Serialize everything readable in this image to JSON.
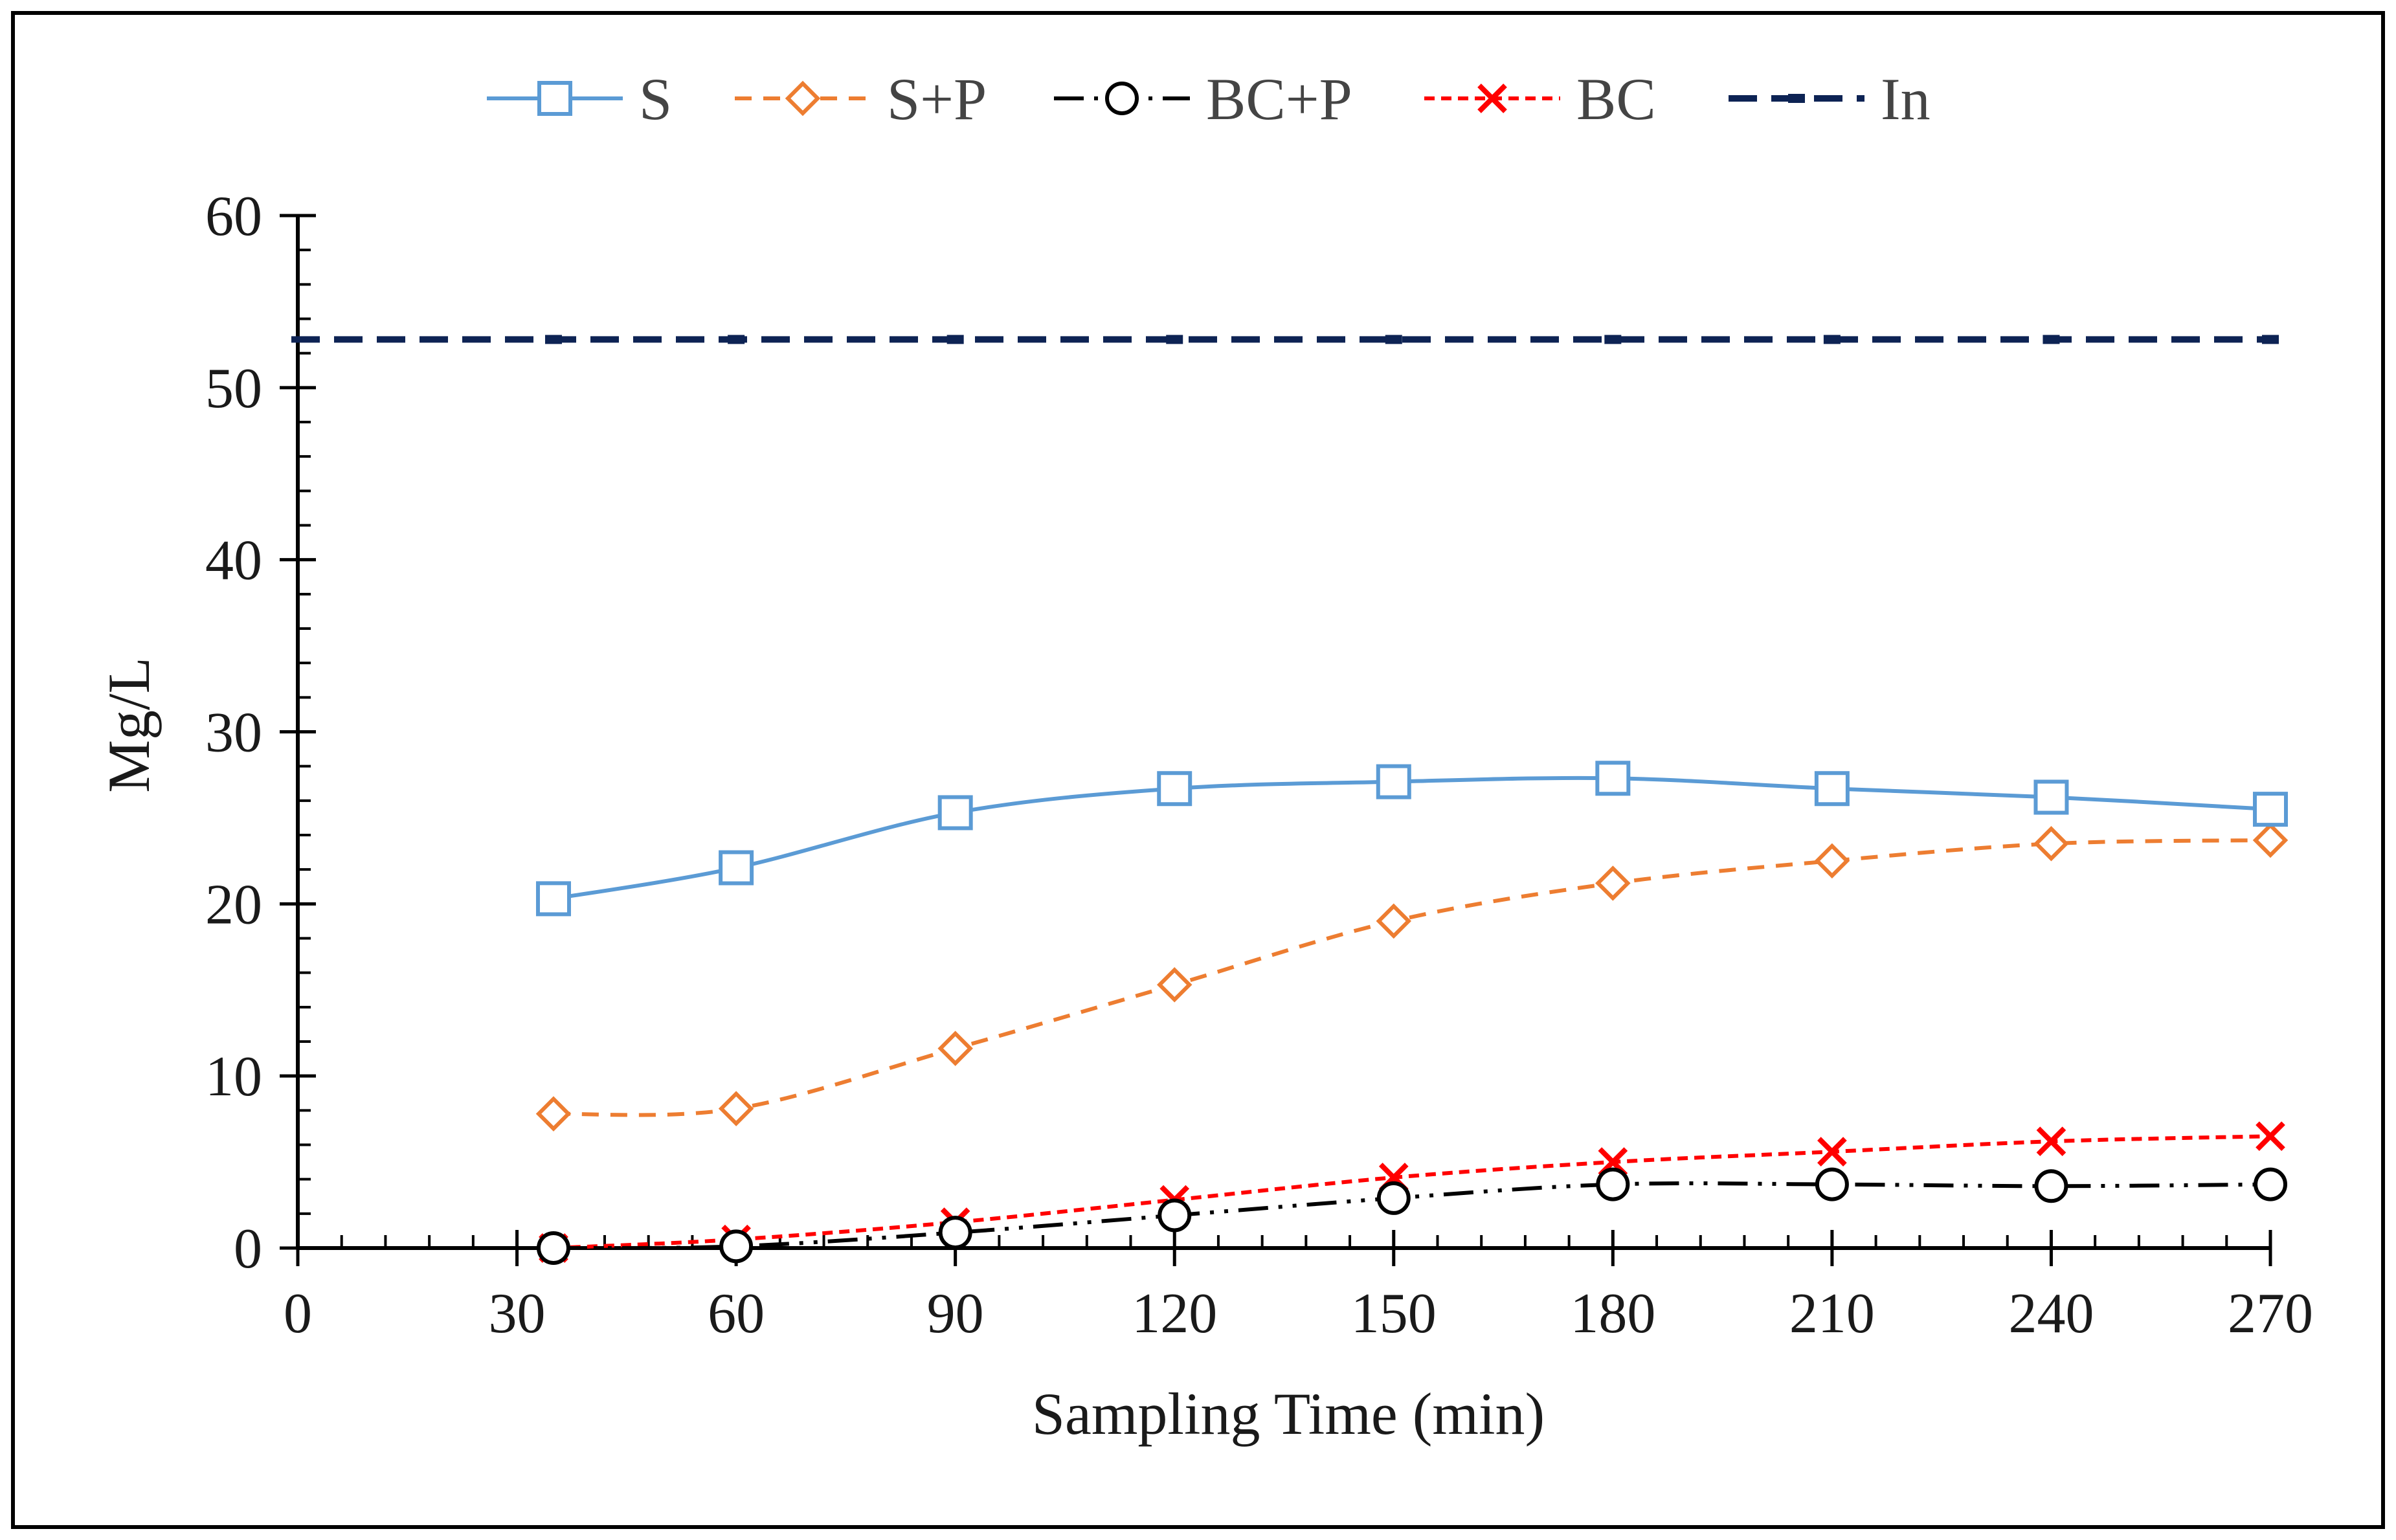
{
  "chart_data": {
    "type": "line",
    "title": "",
    "xlabel": "Sampling Time (min)",
    "ylabel": "Mg/L",
    "xlim": [
      0,
      270
    ],
    "ylim": [
      0,
      60
    ],
    "x_ticks": [
      0,
      30,
      60,
      90,
      120,
      150,
      180,
      210,
      240,
      270
    ],
    "y_ticks": [
      0,
      10,
      20,
      30,
      40,
      50,
      60
    ],
    "x_tick_labels": [
      "0",
      "30",
      "60",
      "90",
      "120",
      "150",
      "180",
      "210",
      "240",
      "270"
    ],
    "y_tick_labels": [
      "0",
      "10",
      "20",
      "30",
      "40",
      "50",
      "60"
    ],
    "x": [
      35,
      60,
      90,
      120,
      150,
      180,
      210,
      240,
      270
    ],
    "legend_position": "top",
    "grid": false,
    "series": [
      {
        "name": "S",
        "color": "#5b9bd5",
        "marker": "square",
        "dash": "solid",
        "values": [
          20.3,
          22.1,
          25.3,
          26.7,
          27.1,
          27.3,
          26.7,
          26.2,
          25.5
        ]
      },
      {
        "name": "S+P",
        "color": "#ed7d31",
        "marker": "diamond",
        "dash": "dashed",
        "values": [
          7.8,
          8.1,
          11.6,
          15.3,
          19.0,
          21.2,
          22.5,
          23.5,
          23.7
        ]
      },
      {
        "name": "BC+P",
        "color": "#000000",
        "marker": "circle",
        "dash": "dashdotdot",
        "values": [
          0.0,
          0.1,
          0.9,
          1.9,
          2.9,
          3.7,
          3.7,
          3.6,
          3.7
        ]
      },
      {
        "name": "BC",
        "color": "#ff0000",
        "marker": "x",
        "dash": "dotted",
        "values": [
          0.0,
          0.5,
          1.5,
          2.8,
          4.1,
          5.0,
          5.6,
          6.2,
          6.5
        ]
      },
      {
        "name": "In",
        "color": "#0d2354",
        "marker": "dash",
        "dash": "longdash",
        "values": [
          52.8,
          52.8,
          52.8,
          52.8,
          52.8,
          52.8,
          52.8,
          52.8,
          52.8
        ]
      }
    ]
  }
}
